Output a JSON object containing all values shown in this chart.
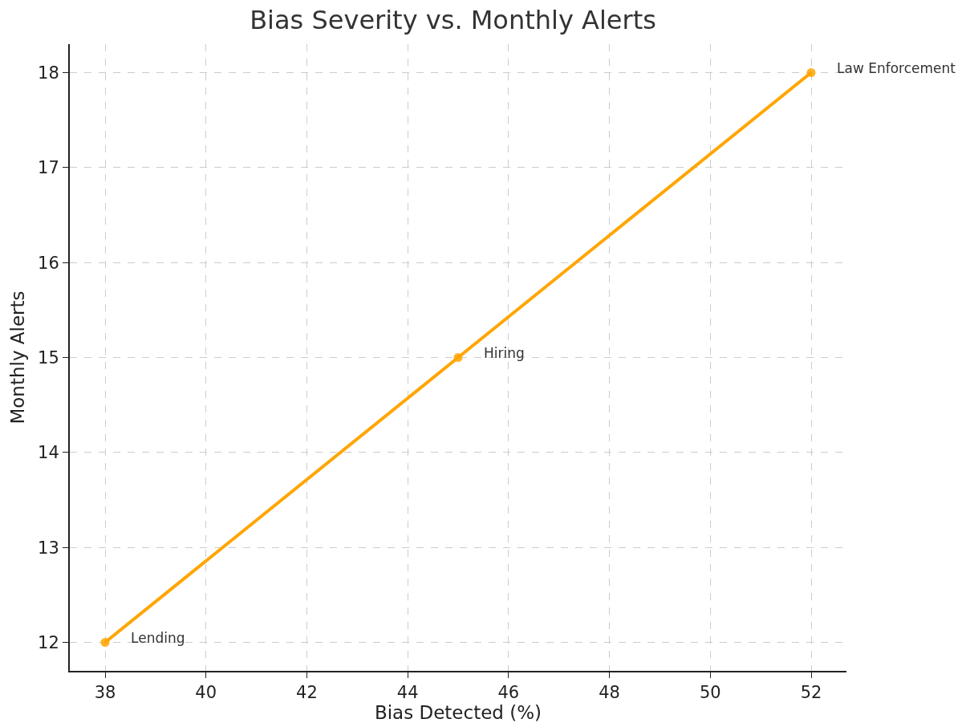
{
  "chart_data": {
    "type": "line",
    "title": "Bias Severity vs. Monthly Alerts",
    "xlabel": "Bias Detected (%)",
    "ylabel": "Monthly Alerts",
    "x": [
      38,
      45,
      52
    ],
    "series": [
      {
        "color": "#ffa500",
        "values": [
          12,
          15,
          18
        ]
      }
    ],
    "marker": "circle",
    "line_style": "solid",
    "grid": true,
    "xlim": [
      37.3,
      52.7
    ],
    "xticks": [
      38,
      40,
      42,
      44,
      46,
      48,
      50,
      52
    ],
    "ylim": [
      11.7,
      18.3
    ],
    "yticks": [
      12,
      13,
      14,
      15,
      16,
      17,
      18
    ],
    "annotations": [
      {
        "text": "Lending",
        "x": 38,
        "y": 12
      },
      {
        "text": "Hiring",
        "x": 45,
        "y": 15
      },
      {
        "text": "Law Enforcement",
        "x": 52,
        "y": 18
      }
    ]
  }
}
